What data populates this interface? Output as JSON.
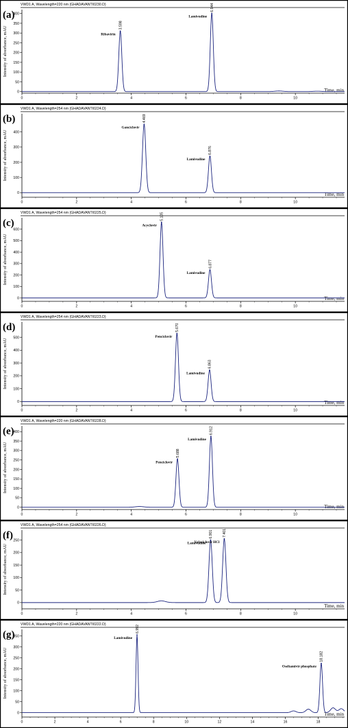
{
  "y_axis_label": "Intensity of absorbance, mAU",
  "x_axis_label": "Time, min",
  "chart_data": [
    {
      "type": "line",
      "panel": "(a)",
      "header": "VWD1 A, Wavelength=220 nm (GHADAVANTI0230.D)",
      "x_ticks": [
        0,
        2,
        4,
        6,
        8,
        10
      ],
      "xlim": [
        0,
        11.8
      ],
      "y_ticks": [
        0,
        50,
        100,
        150,
        200,
        250,
        300,
        350,
        400
      ],
      "ylim": [
        -8,
        420
      ],
      "peaks": [
        {
          "name": "Ribavirin",
          "rt": 3.598,
          "rt_label": "3.598",
          "height": 310,
          "sigma": 0.055
        },
        {
          "name": "Lamivudine",
          "rt": 6.944,
          "rt_label": "6.944",
          "height": 400,
          "sigma": 0.055
        }
      ],
      "minor_bumps": [
        {
          "rt": 9.4,
          "height": 3
        },
        {
          "rt": 10.8,
          "height": 2
        }
      ]
    },
    {
      "type": "line",
      "panel": "(b)",
      "header": "VWD1 A, Wavelength=254 nm (GHADAVANTI0224.D)",
      "x_ticks": [
        0,
        2,
        4,
        6,
        8,
        10
      ],
      "xlim": [
        0,
        11.8
      ],
      "y_ticks": [
        0,
        100,
        200,
        300,
        400
      ],
      "ylim": [
        -30,
        520
      ],
      "peaks": [
        {
          "name": "Ganciclovir",
          "rt": 4.469,
          "rt_label": "4.469",
          "height": 450,
          "sigma": 0.06
        },
        {
          "name": "Lamivudine",
          "rt": 6.876,
          "rt_label": "6.876",
          "height": 240,
          "sigma": 0.055
        }
      ],
      "minor_bumps": []
    },
    {
      "type": "line",
      "panel": "(c)",
      "header": "VWD1 A, Wavelength=254 nm (GHADAVANTI0225.D)",
      "x_ticks": [
        0,
        2,
        4,
        6,
        8,
        10
      ],
      "xlim": [
        0,
        11.8
      ],
      "y_ticks": [
        0,
        100,
        200,
        300,
        400,
        500,
        600
      ],
      "ylim": [
        -30,
        700
      ],
      "peaks": [
        {
          "name": "Acyclovir",
          "rt": 5.105,
          "rt_label": "5.105",
          "height": 660,
          "sigma": 0.055
        },
        {
          "name": "Lamivudine",
          "rt": 6.877,
          "rt_label": "6.877",
          "height": 245,
          "sigma": 0.055
        }
      ],
      "minor_bumps": []
    },
    {
      "type": "line",
      "panel": "(d)",
      "header": "VWD1 A, Wavelength=254 nm (GHADAVANTI0223.D)",
      "x_ticks": [
        0,
        2,
        4,
        6,
        8,
        10
      ],
      "xlim": [
        0,
        11.8
      ],
      "y_ticks": [
        0,
        100,
        200,
        300,
        400,
        500
      ],
      "ylim": [
        -30,
        620
      ],
      "peaks": [
        {
          "name": "Penciclovir",
          "rt": 5.67,
          "rt_label": "5.670",
          "height": 530,
          "sigma": 0.055
        },
        {
          "name": "Lamivudine",
          "rt": 6.863,
          "rt_label": "6.863",
          "height": 245,
          "sigma": 0.055
        }
      ],
      "minor_bumps": []
    },
    {
      "type": "line",
      "panel": "(e)",
      "header": "VWD1 A, Wavelength=220 nm (GHADAVANTI0228.D)",
      "x_ticks": [
        0,
        2,
        4,
        6,
        8,
        10
      ],
      "xlim": [
        0,
        11.8
      ],
      "y_ticks": [
        0,
        50,
        100,
        150,
        200,
        250,
        300,
        350,
        400
      ],
      "ylim": [
        -12,
        430
      ],
      "peaks": [
        {
          "name": "Penciclovir",
          "rt": 5.688,
          "rt_label": "5.688",
          "height": 255,
          "sigma": 0.055
        },
        {
          "name": "Lamivudine",
          "rt": 6.912,
          "rt_label": "6.912",
          "height": 375,
          "sigma": 0.055
        }
      ],
      "minor_bumps": [
        {
          "rt": 4.3,
          "height": 4
        }
      ]
    },
    {
      "type": "line",
      "panel": "(f)",
      "header": "VWD1 A, Wavelength=254 nm (GHADAVANTI0226.D)",
      "x_ticks": [
        0,
        2,
        4,
        6,
        8,
        10
      ],
      "xlim": [
        0,
        11.8
      ],
      "y_ticks": [
        0,
        50,
        100,
        150,
        200,
        250
      ],
      "ylim": [
        -25,
        290
      ],
      "peaks": [
        {
          "name": "Lamivudine",
          "rt": 6.901,
          "rt_label": "6.901",
          "height": 250,
          "sigma": 0.06
        },
        {
          "name": "Valaciclovir HCl",
          "rt": 7.401,
          "rt_label": "7.401",
          "height": 255,
          "sigma": 0.06
        }
      ],
      "minor_bumps": [
        {
          "rt": 5.1,
          "height": 7
        }
      ]
    },
    {
      "type": "line",
      "panel": "(g)",
      "header": "VWD1 A, Wavelength=220 nm (GHADAVANTI0222.D)",
      "x_ticks": [
        0,
        2,
        4,
        6,
        8,
        10,
        12,
        14,
        16,
        18
      ],
      "xlim": [
        0,
        19.6
      ],
      "y_ticks": [
        0,
        50,
        100,
        150,
        200,
        250,
        300,
        350
      ],
      "ylim": [
        -20,
        380
      ],
      "peaks": [
        {
          "name": "Lamivudine",
          "rt": 6.992,
          "rt_label": "6.992",
          "height": 355,
          "sigma": 0.06
        },
        {
          "name": "Oseltamivir phosphate",
          "rt": 18.182,
          "rt_label": "18.182",
          "height": 225,
          "sigma": 0.08
        }
      ],
      "minor_bumps": [
        {
          "rt": 16.5,
          "height": 8
        },
        {
          "rt": 17.4,
          "height": 16
        },
        {
          "rt": 18.9,
          "height": 22
        },
        {
          "rt": 19.4,
          "height": 18
        }
      ]
    }
  ]
}
